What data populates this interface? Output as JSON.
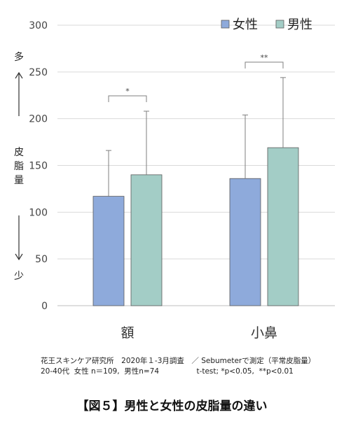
{
  "chart_data": {
    "type": "bar",
    "categories": [
      "額",
      "小鼻"
    ],
    "series": [
      {
        "name": "女性",
        "color": "#8eaadb",
        "values": [
          117,
          136
        ],
        "error_high": [
          166,
          204
        ]
      },
      {
        "name": "男性",
        "color": "#a3cdc6",
        "values": [
          140,
          169
        ],
        "error_high": [
          208,
          244
        ]
      }
    ],
    "ylim": [
      0,
      300
    ],
    "yticks": [
      "0",
      "50",
      "100",
      "150",
      "200",
      "250",
      "300"
    ],
    "ylabel": "皮脂量",
    "y_top_label": "多",
    "y_bottom_label": "少",
    "significance": [
      "*",
      "**"
    ],
    "legend_position": "top-right",
    "grid": true
  },
  "notes": {
    "line1": "花王スキンケア研究所　2020年１-3月調査　／ Sebumeterで測定（平常皮脂量）",
    "line2": "20-40代  女性 n＝109,  男性n=74                t-test; *p<0.05,  **p<0.01"
  },
  "caption": "【図５】男性と女性の皮脂量の違い"
}
